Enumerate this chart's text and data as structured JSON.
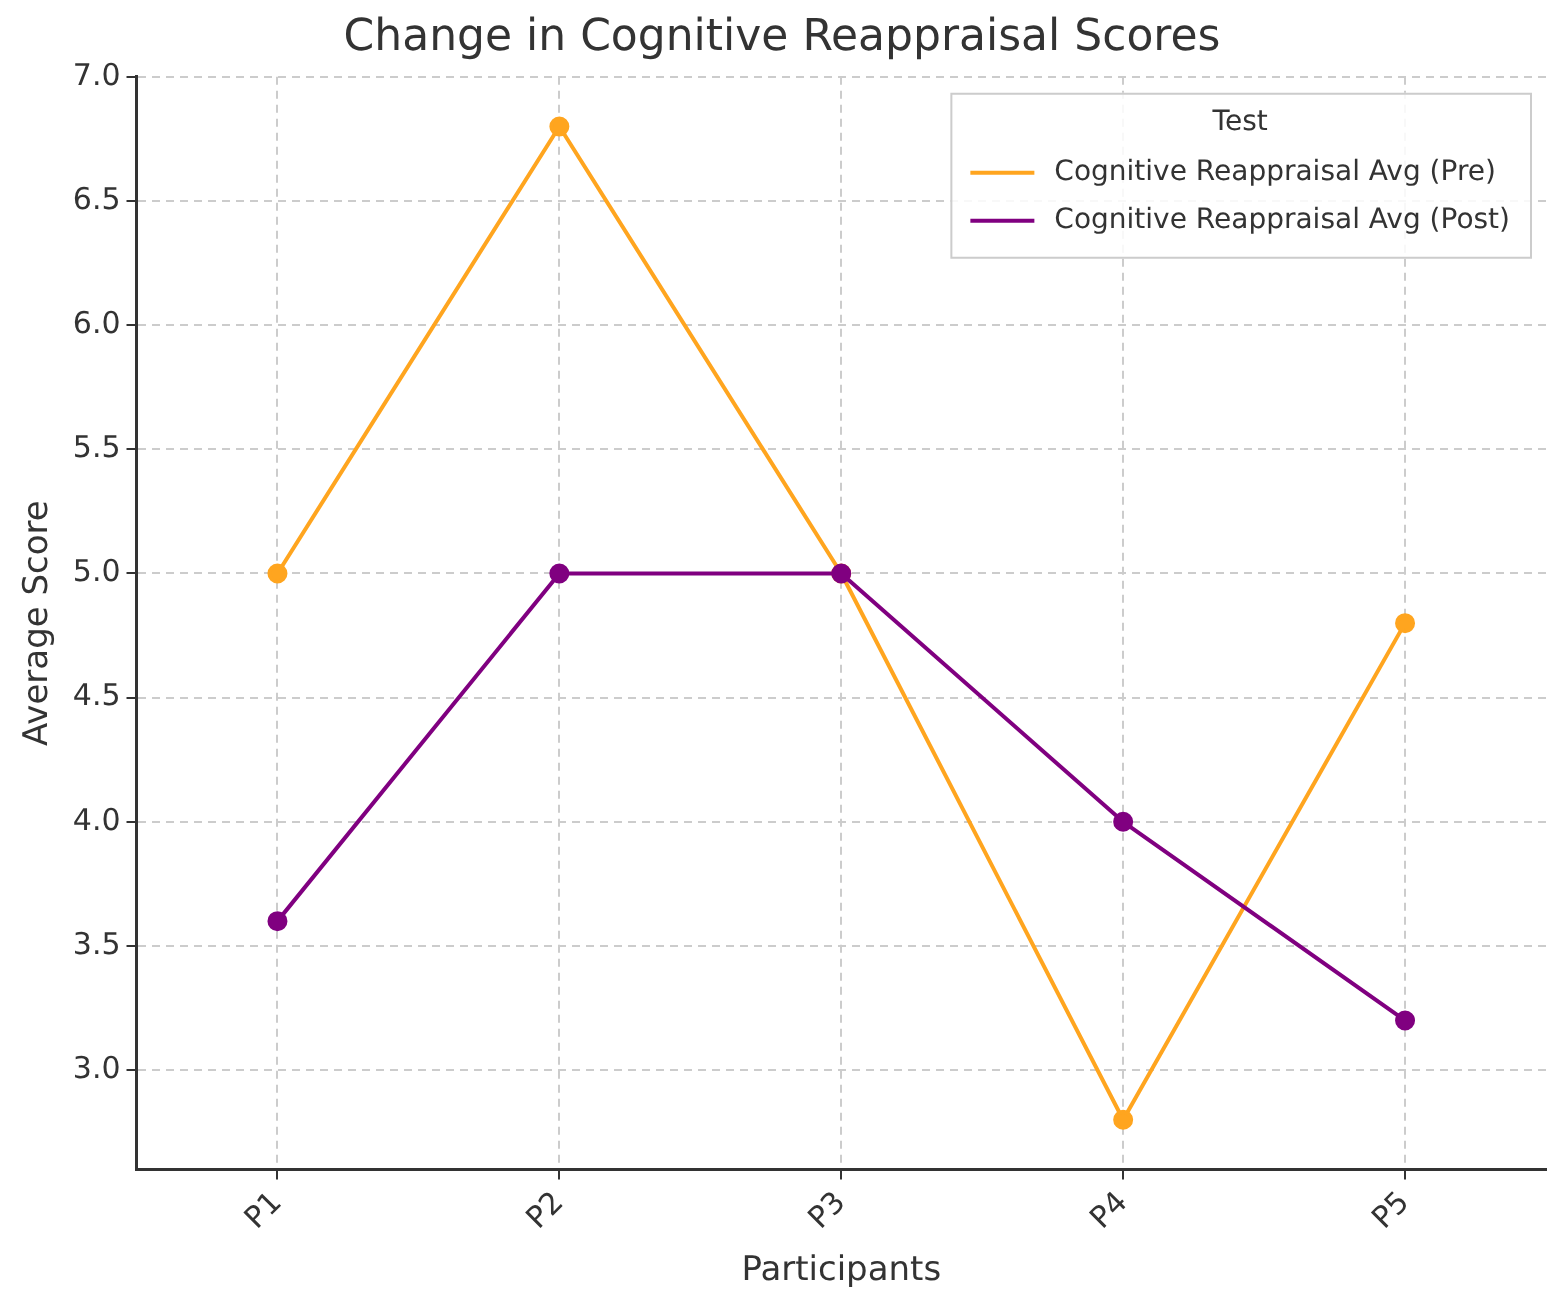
{
  "chart_data": {
    "type": "line",
    "title": "Change in Cognitive Reappraisal Scores",
    "xlabel": "Participants",
    "ylabel": "Average Score",
    "legend_title": "Test",
    "categories": [
      "P1",
      "P2",
      "P3",
      "P4",
      "P5"
    ],
    "series": [
      {
        "name": "Cognitive Reappraisal Avg (Pre)",
        "color": "#ffa51f",
        "values": [
          5.0,
          6.8,
          5.0,
          2.8,
          4.8
        ]
      },
      {
        "name": "Cognitive Reappraisal Avg (Post)",
        "color": "#800080",
        "values": [
          3.6,
          5.0,
          5.0,
          4.0,
          3.2
        ]
      }
    ],
    "ylim": [
      2.6,
      7.0
    ],
    "yticks": [
      {
        "value": 3,
        "label": "3.0"
      },
      {
        "value": 3.5,
        "label": "3.5"
      },
      {
        "value": 4,
        "label": "4.0"
      },
      {
        "value": 4.5,
        "label": "4.5"
      },
      {
        "value": 5,
        "label": "5.0"
      },
      {
        "value": 5.5,
        "label": "5.5"
      },
      {
        "value": 6,
        "label": "6.0"
      },
      {
        "value": 6.5,
        "label": "6.5"
      },
      {
        "value": 7,
        "label": "7.0"
      }
    ],
    "grid": true,
    "legend": "top right",
    "marker": "circle",
    "line_style": "solid"
  }
}
